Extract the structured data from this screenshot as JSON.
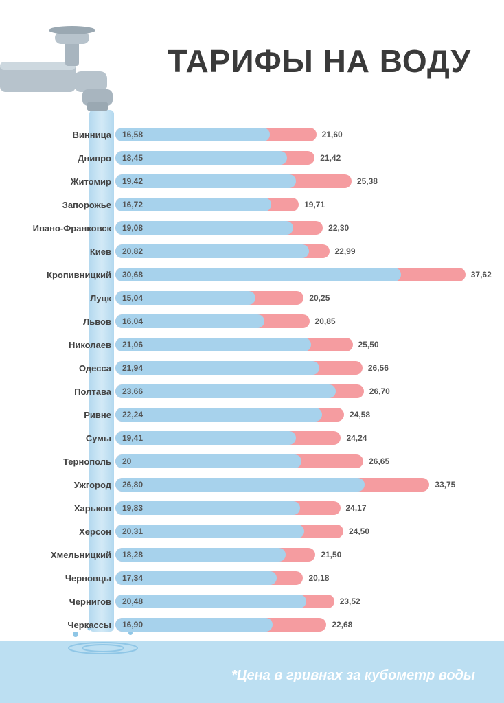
{
  "title": "ТАРИФЫ НА ВОДУ",
  "footnote": "*Цена в гривнах за кубометр воды",
  "chart": {
    "type": "bar",
    "max_value": 40,
    "bar_color_low": "#a7d2ec",
    "bar_color_high": "#f59ca0",
    "background_color": "#ffffff",
    "puddle_color": "#bcdff2",
    "title_color": "#3a3a3a",
    "title_fontsize": 46,
    "label_fontsize": 13,
    "value_fontsize": 12,
    "rows": [
      {
        "city": "Винница",
        "low": "16,58",
        "low_n": 16.58,
        "high": "21,60",
        "high_n": 21.6
      },
      {
        "city": "Днипро",
        "low": "18,45",
        "low_n": 18.45,
        "high": "21,42",
        "high_n": 21.42
      },
      {
        "city": "Житомир",
        "low": "19,42",
        "low_n": 19.42,
        "high": "25,38",
        "high_n": 25.38
      },
      {
        "city": "Запорожье",
        "low": "16,72",
        "low_n": 16.72,
        "high": "19,71",
        "high_n": 19.71
      },
      {
        "city": "Ивано-Франковск",
        "low": "19,08",
        "low_n": 19.08,
        "high": "22,30",
        "high_n": 22.3
      },
      {
        "city": "Киев",
        "low": "20,82",
        "low_n": 20.82,
        "high": "22,99",
        "high_n": 22.99
      },
      {
        "city": "Кропивницкий",
        "low": "30,68",
        "low_n": 30.68,
        "high": "37,62",
        "high_n": 37.62
      },
      {
        "city": "Луцк",
        "low": "15,04",
        "low_n": 15.04,
        "high": "20,25",
        "high_n": 20.25
      },
      {
        "city": "Львов",
        "low": "16,04",
        "low_n": 16.04,
        "high": "20,85",
        "high_n": 20.85
      },
      {
        "city": "Николаев",
        "low": "21,06",
        "low_n": 21.06,
        "high": "25,50",
        "high_n": 25.5
      },
      {
        "city": "Одесса",
        "low": "21,94",
        "low_n": 21.94,
        "high": "26,56",
        "high_n": 26.56
      },
      {
        "city": "Полтава",
        "low": "23,66",
        "low_n": 23.66,
        "high": "26,70",
        "high_n": 26.7
      },
      {
        "city": "Ривне",
        "low": "22,24",
        "low_n": 22.24,
        "high": "24,58",
        "high_n": 24.58
      },
      {
        "city": "Сумы",
        "low": "19,41",
        "low_n": 19.41,
        "high": "24,24",
        "high_n": 24.24
      },
      {
        "city": "Тернополь",
        "low": "20",
        "low_n": 20.0,
        "high": "26,65",
        "high_n": 26.65
      },
      {
        "city": "Ужгород",
        "low": "26,80",
        "low_n": 26.8,
        "high": "33,75",
        "high_n": 33.75
      },
      {
        "city": "Харьков",
        "low": "19,83",
        "low_n": 19.83,
        "high": "24,17",
        "high_n": 24.17
      },
      {
        "city": "Херсон",
        "low": "20,31",
        "low_n": 20.31,
        "high": "24,50",
        "high_n": 24.5
      },
      {
        "city": "Хмельницкий",
        "low": "18,28",
        "low_n": 18.28,
        "high": "21,50",
        "high_n": 21.5
      },
      {
        "city": "Черновцы",
        "low": "17,34",
        "low_n": 17.34,
        "high": "20,18",
        "high_n": 20.18
      },
      {
        "city": "Чернигов",
        "low": "20,48",
        "low_n": 20.48,
        "high": "23,52",
        "high_n": 23.52
      },
      {
        "city": "Черкассы",
        "low": "16,90",
        "low_n": 16.9,
        "high": "22,68",
        "high_n": 22.68
      }
    ]
  }
}
